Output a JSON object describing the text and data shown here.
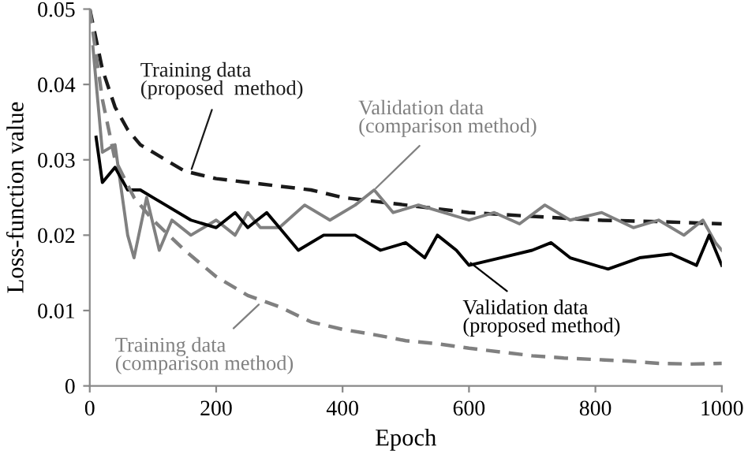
{
  "chart_data": {
    "type": "line",
    "xlabel": "Epoch",
    "ylabel": "Loss-function value",
    "xlim": [
      0,
      1000
    ],
    "ylim": [
      0,
      0.05
    ],
    "xticks": [
      0,
      200,
      400,
      600,
      800,
      1000
    ],
    "yticks": [
      0,
      0.01,
      0.02,
      0.03,
      0.04,
      0.05
    ],
    "grid": false,
    "legend": false,
    "series": [
      {
        "color": "#1a1a1a",
        "line_style": "dashed",
        "x": [
          0,
          10,
          20,
          40,
          60,
          80,
          100,
          150,
          200,
          250,
          300,
          350,
          400,
          500,
          600,
          700,
          800,
          900,
          1000
        ],
        "values": [
          0.05,
          0.046,
          0.042,
          0.037,
          0.034,
          0.032,
          0.031,
          0.0285,
          0.0275,
          0.027,
          0.0265,
          0.026,
          0.025,
          0.024,
          0.023,
          0.0225,
          0.022,
          0.0218,
          0.0215
        ]
      },
      {
        "color": "#808080",
        "line_style": "solid",
        "x": [
          5,
          20,
          40,
          60,
          70,
          90,
          110,
          130,
          160,
          200,
          230,
          250,
          270,
          300,
          340,
          380,
          420,
          450,
          480,
          520,
          560,
          600,
          640,
          680,
          720,
          760,
          810,
          860,
          900,
          940,
          970,
          990,
          1000
        ],
        "values": [
          0.045,
          0.031,
          0.032,
          0.02,
          0.017,
          0.025,
          0.018,
          0.022,
          0.02,
          0.022,
          0.02,
          0.023,
          0.021,
          0.021,
          0.024,
          0.022,
          0.024,
          0.026,
          0.023,
          0.024,
          0.023,
          0.022,
          0.023,
          0.0215,
          0.024,
          0.022,
          0.023,
          0.021,
          0.022,
          0.02,
          0.022,
          0.019,
          0.018
        ]
      },
      {
        "color": "#000000",
        "line_style": "solid",
        "x": [
          10,
          20,
          40,
          60,
          80,
          100,
          120,
          160,
          200,
          230,
          250,
          280,
          300,
          330,
          370,
          420,
          460,
          500,
          530,
          550,
          580,
          600,
          650,
          700,
          730,
          760,
          820,
          870,
          920,
          960,
          980,
          1000
        ],
        "values": [
          0.033,
          0.027,
          0.029,
          0.026,
          0.026,
          0.025,
          0.024,
          0.022,
          0.021,
          0.023,
          0.021,
          0.023,
          0.021,
          0.018,
          0.02,
          0.02,
          0.018,
          0.019,
          0.017,
          0.02,
          0.018,
          0.016,
          0.017,
          0.018,
          0.019,
          0.017,
          0.0155,
          0.017,
          0.0175,
          0.016,
          0.02,
          0.016
        ]
      },
      {
        "color": "#808080",
        "line_style": "dashed",
        "x": [
          0,
          20,
          40,
          70,
          100,
          150,
          200,
          250,
          300,
          350,
          400,
          450,
          500,
          550,
          600,
          650,
          700,
          750,
          800,
          850,
          900,
          950,
          1000
        ],
        "values": [
          0.05,
          0.038,
          0.03,
          0.025,
          0.022,
          0.018,
          0.0145,
          0.012,
          0.0105,
          0.0085,
          0.0075,
          0.0068,
          0.006,
          0.0056,
          0.005,
          0.0045,
          0.004,
          0.0037,
          0.0035,
          0.0033,
          0.003,
          0.0029,
          0.003
        ]
      }
    ],
    "annotations": [
      {
        "text": "Training data\n(proposed  method)",
        "x": 160,
        "y": 0.0285
      },
      {
        "text": "Validation data\n(comparison method)",
        "x": 450,
        "y": 0.026
      },
      {
        "text": "Validation data\n(proposed method)",
        "x": 600,
        "y": 0.0165
      },
      {
        "text": "Training data\n(comparison method)",
        "x": 270,
        "y": 0.011
      }
    ]
  }
}
